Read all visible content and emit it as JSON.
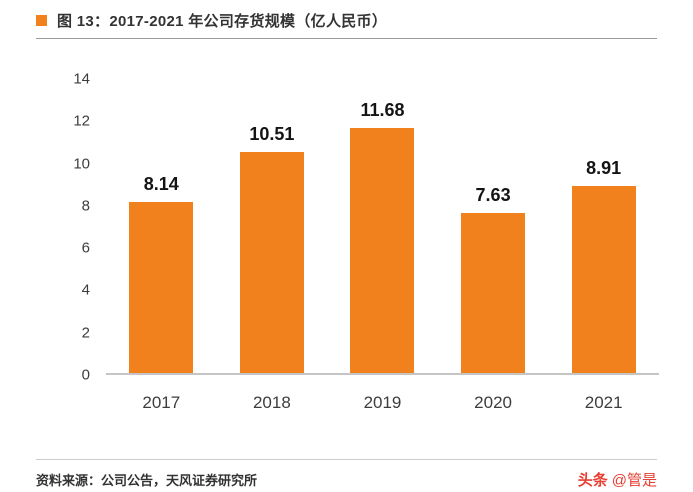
{
  "header": {
    "title": "图 13：2017-2021 年公司存货规模（亿人民币）"
  },
  "chart_data": {
    "type": "bar",
    "categories": [
      "2017",
      "2018",
      "2019",
      "2020",
      "2021"
    ],
    "values": [
      8.14,
      10.51,
      11.68,
      7.63,
      8.91
    ],
    "value_labels": [
      "8.14",
      "10.51",
      "11.68",
      "7.63",
      "8.91"
    ],
    "title": "图 13：2017-2021 年公司存货规模（亿人民币）",
    "xlabel": "",
    "ylabel": "",
    "ylim": [
      0,
      14
    ],
    "yticks": [
      0,
      2,
      4,
      6,
      8,
      10,
      12,
      14
    ],
    "grid": false,
    "legend": "none",
    "bar_color": "#F0811C"
  },
  "footer": {
    "source": "资料来源：公司公告，天风证券研究所",
    "watermark_brand": "头条",
    "watermark_handle": "@管是"
  },
  "colors": {
    "accent": "#F0811C",
    "watermark": "#E63E31",
    "axis_line": "#C5C5C5"
  }
}
